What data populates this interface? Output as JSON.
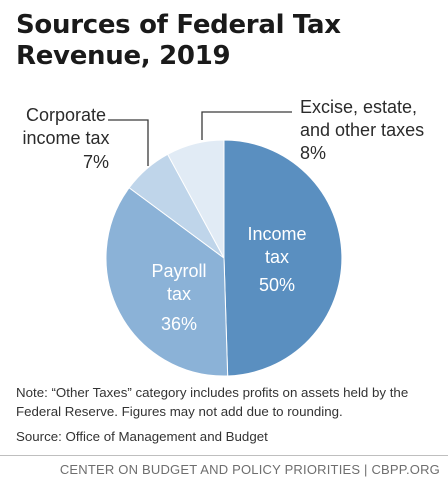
{
  "title_line1": "Sources of Federal Tax",
  "title_line2": "Revenue, 2019",
  "chart_data": {
    "type": "pie",
    "title": "Sources of Federal Tax Revenue, 2019",
    "slices": [
      {
        "name": "Income tax",
        "value": 50,
        "label": "50%",
        "color": "#5a8fc0",
        "text_color": "#ffffff"
      },
      {
        "name": "Payroll tax",
        "value": 36,
        "label": "36%",
        "color": "#8bb2d7",
        "text_color": "#ffffff"
      },
      {
        "name": "Corporate income tax",
        "value": 7,
        "label": "7%",
        "color": "#bfd5ea",
        "text_color": "#2b2b2b"
      },
      {
        "name": "Excise, estate, and other taxes",
        "value": 8,
        "label": "8%",
        "color": "#e1ebf5",
        "text_color": "#2b2b2b"
      }
    ],
    "start": "12 o'clock",
    "direction": "clockwise",
    "labels": {
      "income": {
        "line1": "Income",
        "line2": "tax",
        "pct": "50%"
      },
      "payroll": {
        "line1": "Payroll",
        "line2": "tax",
        "pct": "36%"
      },
      "corporate": {
        "line1": "Corporate",
        "line2": "income tax",
        "pct": "7%"
      },
      "excise": {
        "line1": "Excise, estate,",
        "line2": "and other taxes",
        "pct": "8%"
      }
    }
  },
  "note": "Note: “Other Taxes” category includes profits on assets held by the Federal Reserve. Figures may not add due to rounding.",
  "source": "Source: Office of Management and Budget",
  "footer": "CENTER ON BUDGET AND POLICY PRIORITIES | CBPP.ORG"
}
